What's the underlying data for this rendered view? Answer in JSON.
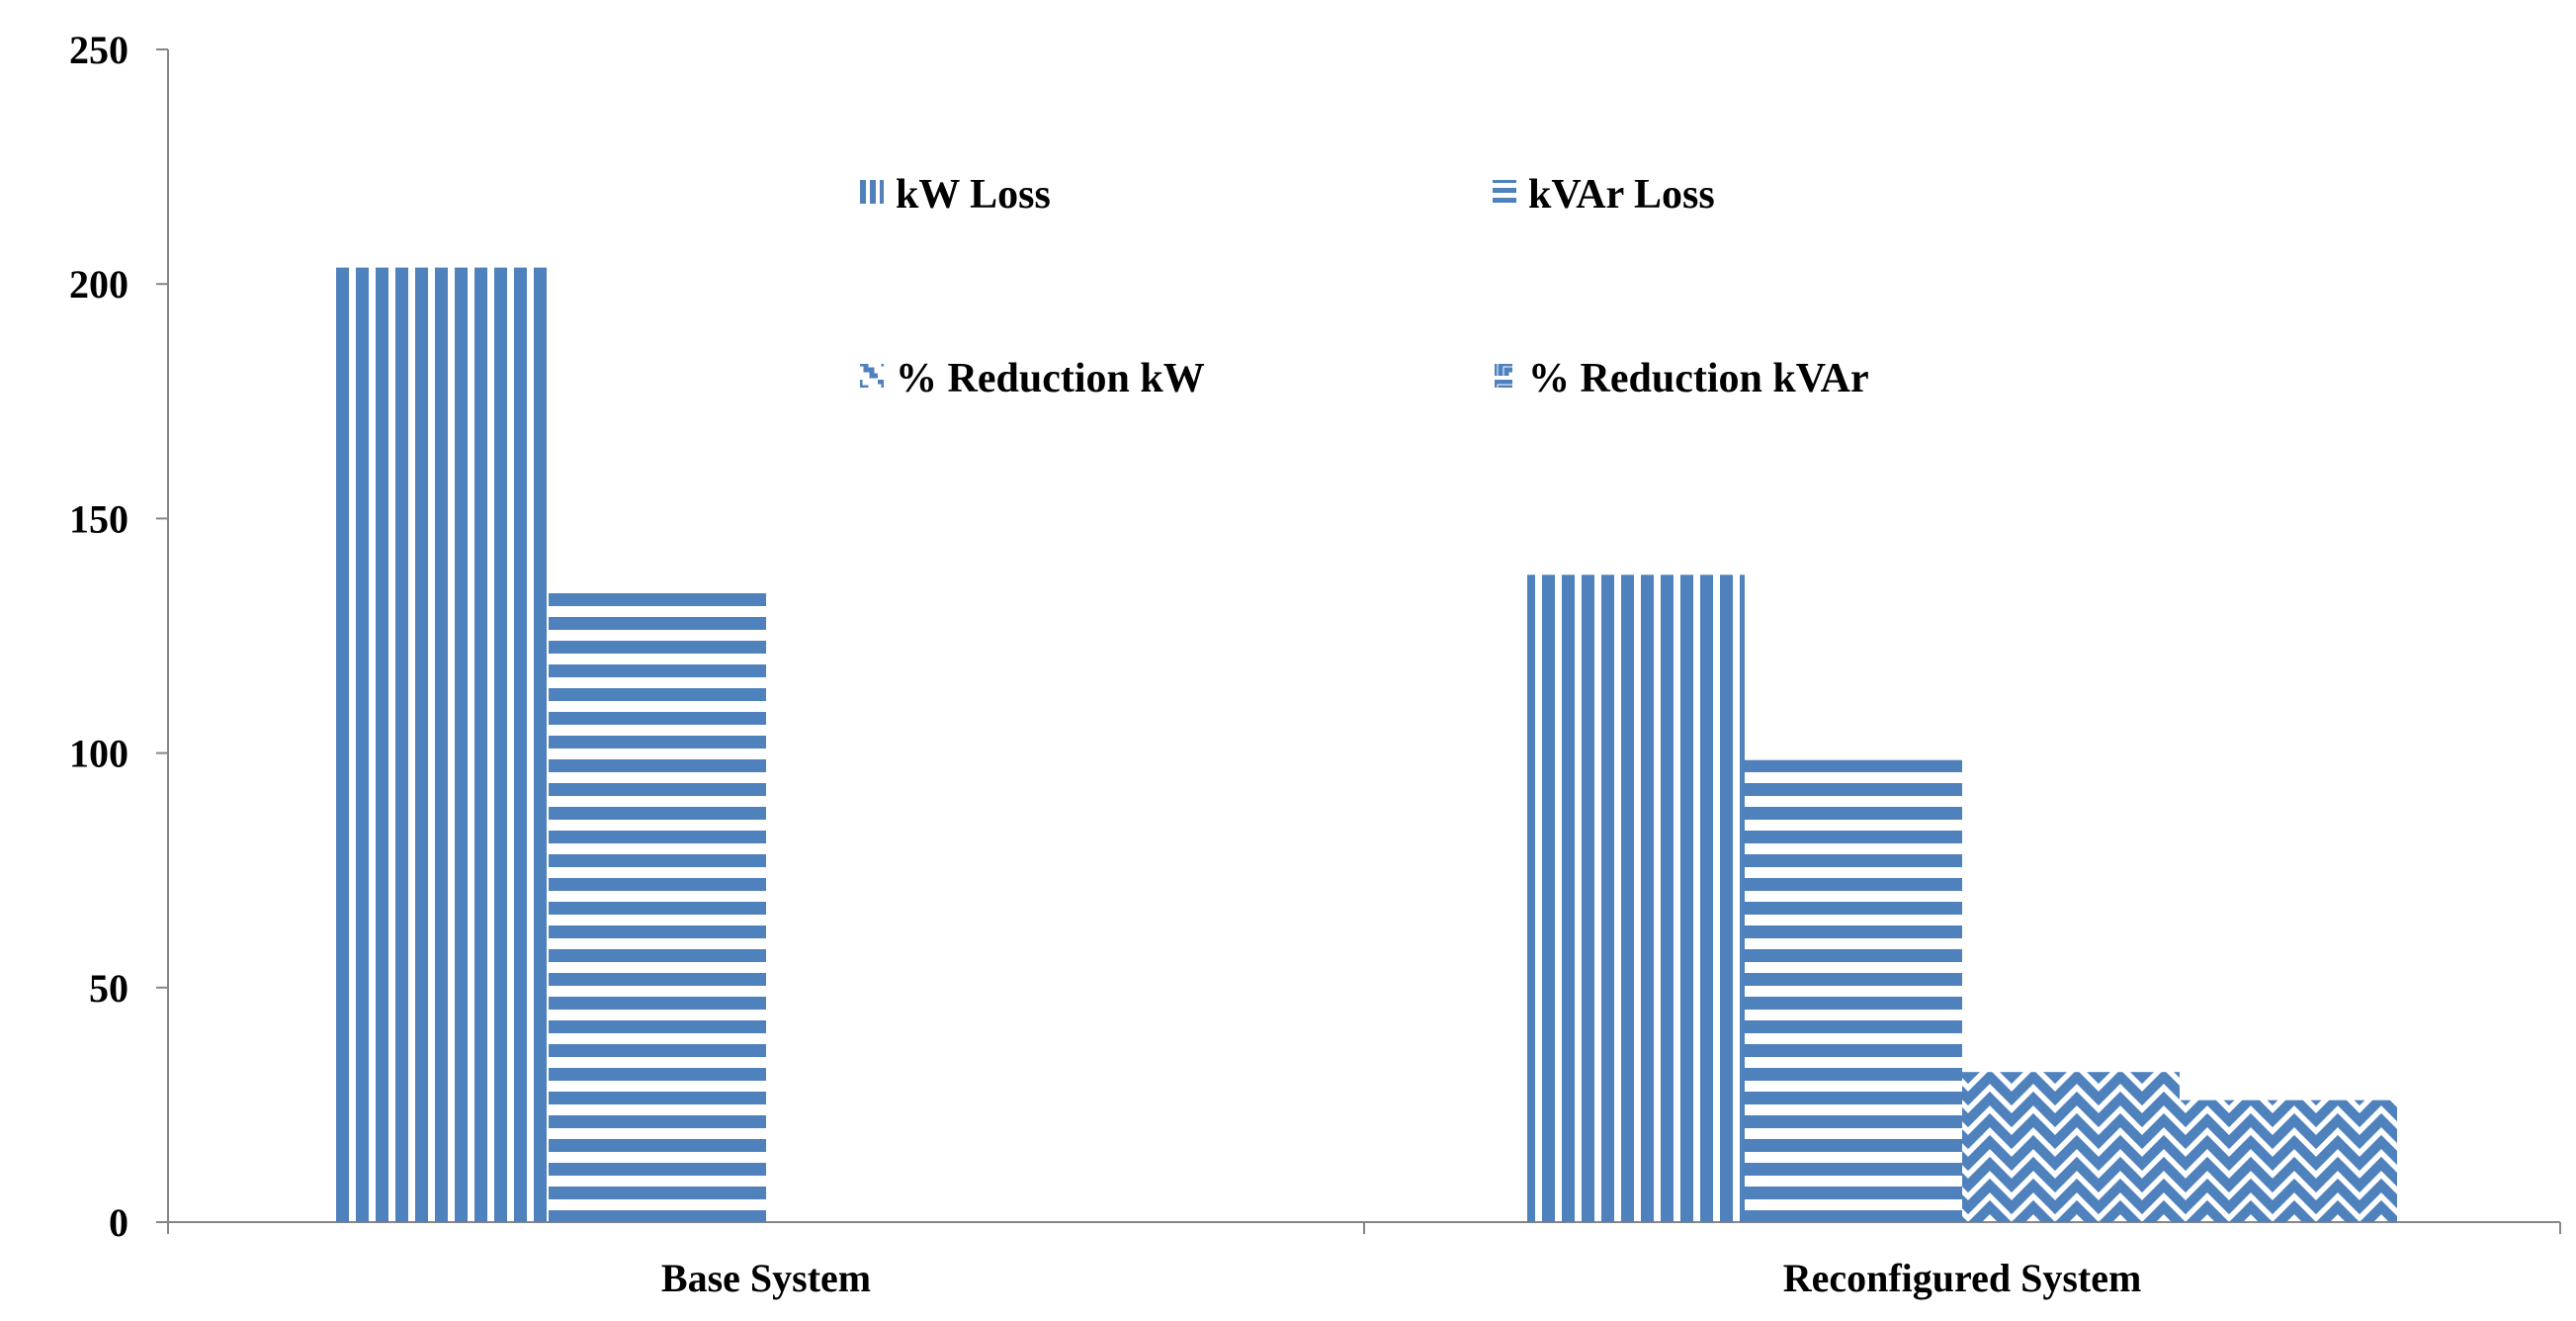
{
  "chart_data": {
    "type": "bar",
    "title": "",
    "xlabel": "",
    "ylabel": "",
    "ylim": [
      0,
      250
    ],
    "yticks": [
      0,
      50,
      100,
      150,
      200,
      250
    ],
    "grid": false,
    "legend_position": "top-center",
    "categories": [
      "Base System",
      "Reconfigured System"
    ],
    "series": [
      {
        "name": "kW Loss",
        "values": [
          203.5,
          138
        ],
        "pattern": "vertical"
      },
      {
        "name": "kVAr Loss",
        "values": [
          134.5,
          98.5
        ],
        "pattern": "horizontal"
      },
      {
        "name": "% Reduction kW",
        "values": [
          0,
          32
        ],
        "pattern": "zigzag"
      },
      {
        "name": "% Reduction kVAr",
        "values": [
          0,
          26
        ],
        "pattern": "zigzag"
      }
    ],
    "colors": {
      "bar": "#4f81bd",
      "axis": "#868686",
      "text": "#000000"
    }
  }
}
